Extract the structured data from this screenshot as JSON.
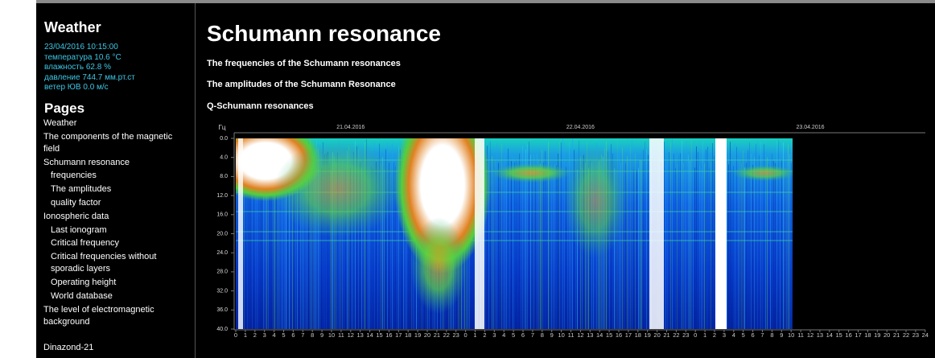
{
  "sidebar": {
    "weather": {
      "title": "Weather",
      "lines": [
        "23/04/2016 10:15:00",
        "температура 10.6 °C",
        "влажность 62.8 %",
        "давление 744.7 мм.рт.ст",
        "ветер ЮВ 0.0 м/с"
      ]
    },
    "pages": {
      "title": "Pages",
      "links": [
        {
          "label": "Weather"
        },
        {
          "label": "The components of the magnetic field"
        },
        {
          "label": "Schumann resonance",
          "children": [
            "frequencies",
            "The amplitudes",
            "quality factor"
          ]
        },
        {
          "label": "Ionospheric data",
          "children": [
            "Last ionogram",
            "Critical frequency",
            "Critical frequencies without sporadic layers",
            "Operating height",
            "World database"
          ]
        },
        {
          "label": "The level of electromagnetic background"
        }
      ]
    },
    "footer_link": "Dinazond-21"
  },
  "main": {
    "title": "Schumann resonance",
    "links": [
      "The frequencies of the Schumann resonances",
      "The amplitudes of the Schumann Resonance",
      "Q-Schumann resonances"
    ],
    "spectrogram": {
      "y_unit": "Гц",
      "ylim": [
        0,
        40
      ],
      "yticks": [
        {
          "value": 0,
          "label": "0.0"
        },
        {
          "value": 4,
          "label": "4.0"
        },
        {
          "value": 8,
          "label": "8.0"
        },
        {
          "value": 12,
          "label": "12.0"
        },
        {
          "value": 16,
          "label": "16.0"
        },
        {
          "value": 20,
          "label": "20.0"
        },
        {
          "value": 24,
          "label": "24.0"
        },
        {
          "value": 28,
          "label": "28.0"
        },
        {
          "value": 32,
          "label": "32.0"
        },
        {
          "value": 36,
          "label": "36.0"
        },
        {
          "value": 40,
          "label": "40.0"
        }
      ],
      "dates": [
        "21.04.2016",
        "22.04.2016",
        "23.04.2016"
      ],
      "hour_labels": [
        0,
        1,
        2,
        3,
        4,
        5,
        6,
        7,
        8,
        9,
        10,
        11,
        12,
        13,
        14,
        15,
        16,
        17,
        18,
        19,
        20,
        21,
        22,
        23,
        0,
        1,
        2,
        3,
        4,
        5,
        6,
        7,
        8,
        9,
        10,
        11,
        12,
        13,
        14,
        15,
        16,
        17,
        18,
        19,
        20,
        21,
        22,
        23,
        0,
        1,
        2,
        3,
        4,
        5,
        6,
        7,
        8,
        9,
        10,
        11,
        12,
        13,
        14,
        15,
        16,
        17,
        18,
        19,
        20,
        21,
        22,
        23,
        24
      ]
    }
  }
}
